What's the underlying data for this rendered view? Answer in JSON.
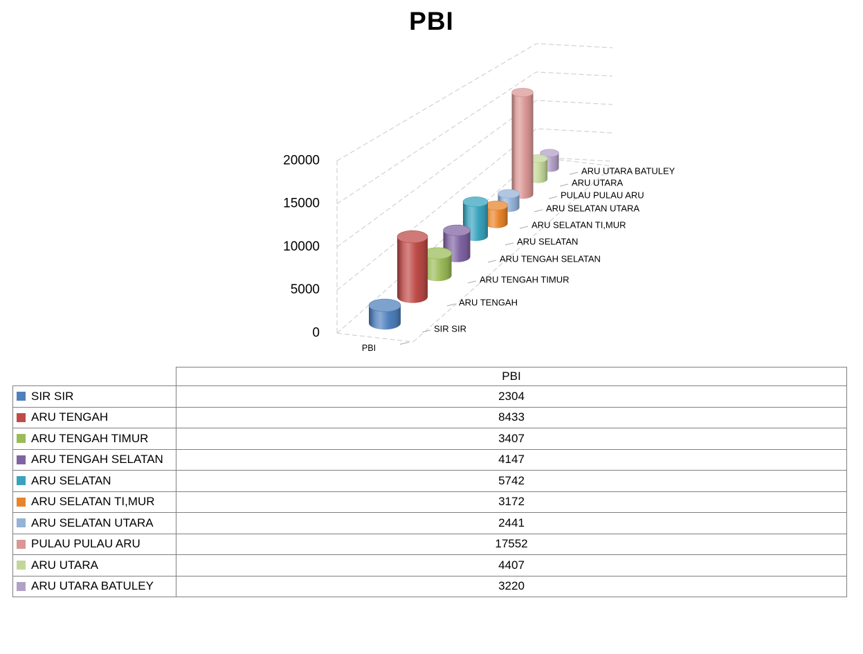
{
  "chart_data": {
    "type": "bar",
    "subtype": "cylinder-3d-perspective",
    "title": "PBI",
    "categories": [
      "SIR SIR",
      "ARU TENGAH",
      "ARU TENGAH TIMUR",
      "ARU TENGAH SELATAN",
      "ARU SELATAN",
      "ARU SELATAN TI,MUR",
      "ARU SELATAN UTARA",
      "PULAU PULAU ARU",
      "ARU UTARA",
      "ARU UTARA BATULEY"
    ],
    "series": [
      {
        "name": "PBI",
        "values": [
          2304,
          8433,
          3407,
          4147,
          5742,
          3172,
          2441,
          17552,
          4407,
          3220
        ]
      }
    ],
    "colors": [
      "#4F81BD",
      "#BE4B48",
      "#9BBB59",
      "#8064A2",
      "#39A3BE",
      "#E8852C",
      "#95B3D7",
      "#D99795",
      "#C2D69A",
      "#B2A1C7"
    ],
    "xlabel": "PBI",
    "ylabel": "",
    "y_ticks": [
      0,
      5000,
      10000,
      15000,
      20000
    ],
    "ylim": [
      0,
      20000
    ],
    "grid": "dashed",
    "legend_position": "data-table-left-column"
  },
  "table": {
    "header": "PBI",
    "rows": [
      {
        "label": "SIR SIR",
        "value": "2304"
      },
      {
        "label": "ARU TENGAH",
        "value": "8433"
      },
      {
        "label": "ARU TENGAH TIMUR",
        "value": "3407"
      },
      {
        "label": "ARU TENGAH SELATAN",
        "value": "4147"
      },
      {
        "label": "ARU SELATAN",
        "value": "5742"
      },
      {
        "label": "ARU SELATAN TI,MUR",
        "value": "3172"
      },
      {
        "label": "ARU SELATAN UTARA",
        "value": "2441"
      },
      {
        "label": "PULAU PULAU ARU",
        "value": "17552"
      },
      {
        "label": "ARU UTARA",
        "value": "4407"
      },
      {
        "label": "ARU UTARA BATULEY",
        "value": "3220"
      }
    ]
  }
}
